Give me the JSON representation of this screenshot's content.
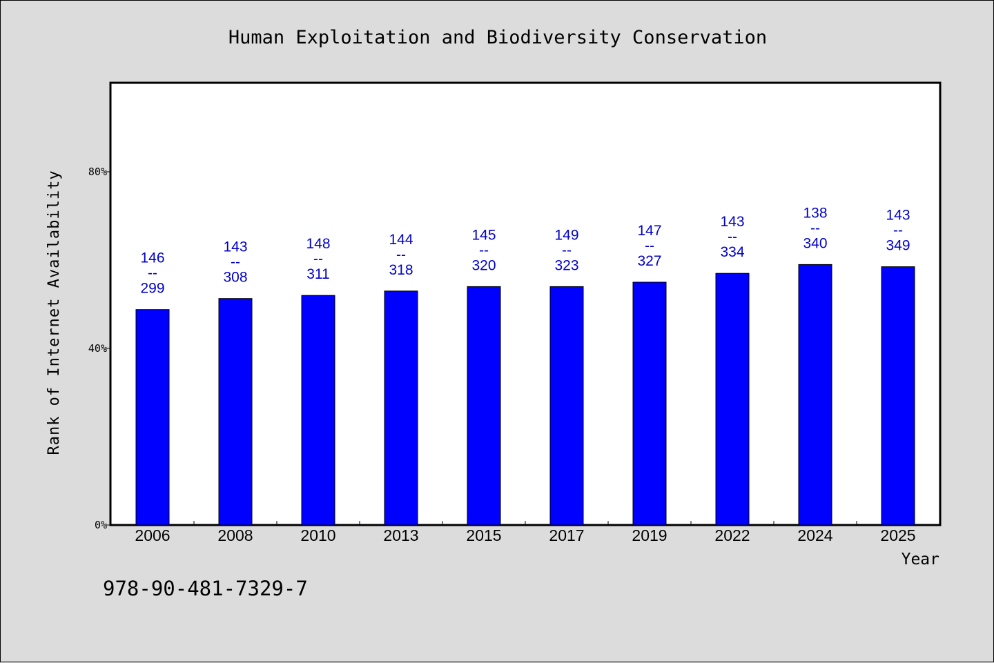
{
  "chart_data": {
    "type": "bar",
    "title": "Human Exploitation and Biodiversity Conservation",
    "xlabel": "Year",
    "ylabel": "Rank of Internet Availability",
    "categories": [
      "2006",
      "2008",
      "2010",
      "2013",
      "2015",
      "2017",
      "2019",
      "2022",
      "2024",
      "2025"
    ],
    "values": [
      0.488,
      0.513,
      0.52,
      0.53,
      0.54,
      0.54,
      0.55,
      0.57,
      0.59,
      0.585
    ],
    "data_labels": [
      [
        "146",
        "--",
        "299"
      ],
      [
        "143",
        "--",
        "308"
      ],
      [
        "148",
        "--",
        "311"
      ],
      [
        "144",
        "--",
        "318"
      ],
      [
        "145",
        "--",
        "320"
      ],
      [
        "149",
        "--",
        "323"
      ],
      [
        "147",
        "--",
        "327"
      ],
      [
        "143",
        "--",
        "334"
      ],
      [
        "138",
        "--",
        "340"
      ],
      [
        "143",
        "--",
        "349"
      ]
    ],
    "ylim": [
      0,
      1.0
    ],
    "yticks": [
      0,
      0.4,
      0.8
    ],
    "ytick_labels": [
      "0%",
      "40%",
      "80%"
    ],
    "bar_color": "#0000ff",
    "label_color": "#0000cc",
    "grid": false,
    "legend": "none"
  },
  "footnote": "978-90-481-7329-7"
}
